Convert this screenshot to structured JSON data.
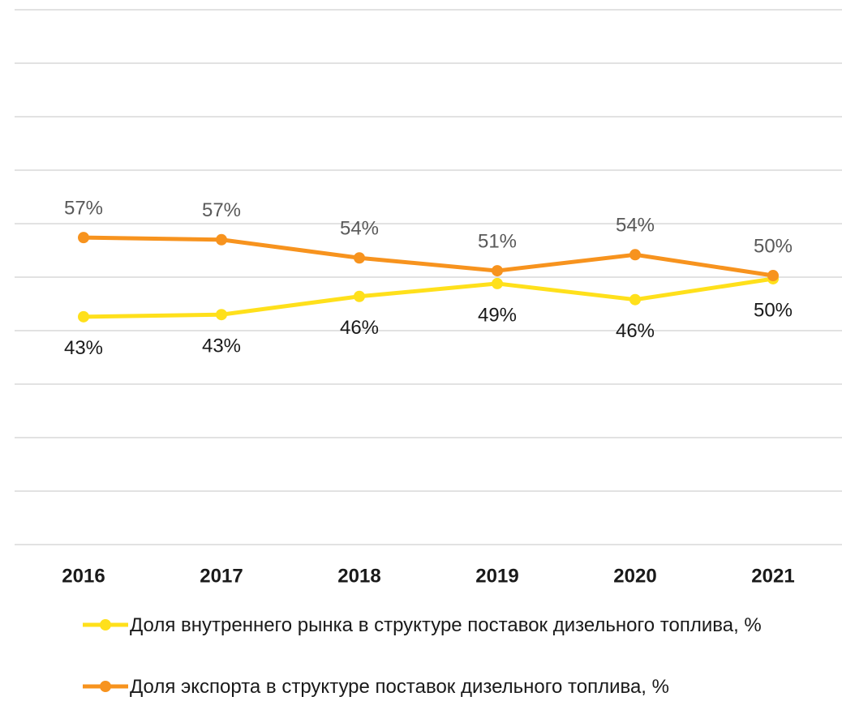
{
  "chart_data": {
    "type": "line",
    "categories": [
      "2016",
      "2017",
      "2018",
      "2019",
      "2020",
      "2021"
    ],
    "series": [
      {
        "name": "Доля внутреннего рынка в структуре поставок дизельного топлива, %",
        "color": "#ffe01b",
        "values": [
          42.6,
          43,
          46.4,
          48.8,
          45.8,
          49.7
        ],
        "value_labels": [
          "43%",
          "43%",
          "46%",
          "49%",
          "46%",
          "50%"
        ]
      },
      {
        "name": "Доля экспорта в структуре поставок дизельного топлива, %",
        "color": "#f7931e",
        "values": [
          57.4,
          57,
          53.6,
          51.2,
          54.2,
          50.3
        ],
        "value_labels": [
          "57%",
          "57%",
          "54%",
          "51%",
          "54%",
          "50%"
        ]
      }
    ],
    "ylim": [
      0,
      100
    ],
    "yticks": [
      0,
      10,
      20,
      30,
      40,
      50,
      60,
      70,
      80,
      90,
      100
    ],
    "grid": true
  }
}
